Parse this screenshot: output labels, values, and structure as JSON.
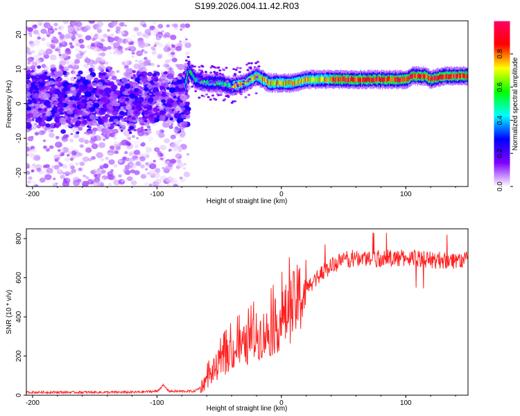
{
  "title": "S199.2026.004.11.42.R03",
  "chart_data": [
    {
      "type": "heatmap",
      "xlabel": "Height of straight line (km)",
      "ylabel": "Frequency (Hz)",
      "xlim": [
        -205,
        150
      ],
      "ylim": [
        -24,
        24
      ],
      "xticks": [
        -200,
        -100,
        0,
        100
      ],
      "yticks": [
        20,
        10,
        0,
        -10,
        -20
      ],
      "colorbar": {
        "label": "Normalized spectral amplitude",
        "range": [
          0,
          1
        ],
        "ticks": [
          "0.0",
          "0.2",
          "0.4",
          "0.6",
          "0.8"
        ],
        "colors": [
          "#ffffff",
          "#8000ff",
          "#0000ff",
          "#00ffff",
          "#00ff00",
          "#ffff00",
          "#ff0000",
          "#ff0066"
        ]
      },
      "ridge_frequency": {
        "x": [
          -200,
          -150,
          -100,
          -80,
          -75,
          -70,
          -60,
          -50,
          -40,
          -30,
          -25,
          -20,
          -15,
          -10,
          0,
          10,
          20,
          30,
          40,
          50,
          60,
          70,
          80,
          90,
          100,
          105,
          110,
          115,
          120,
          130,
          140,
          150
        ],
        "y": [
          1,
          1,
          1,
          2,
          10,
          7,
          6,
          6,
          5,
          6,
          7,
          8,
          7,
          6,
          6,
          6,
          7,
          7,
          7,
          7,
          7,
          7,
          7,
          7,
          7,
          8,
          8,
          8,
          7,
          8,
          8,
          8
        ]
      }
    },
    {
      "type": "line",
      "xlabel": "Height of straight line (km)",
      "ylabel": "SNR (10 * v/v)",
      "xlim": [
        -205,
        150
      ],
      "ylim": [
        0,
        850
      ],
      "xticks": [
        -200,
        -100,
        0,
        100
      ],
      "yticks": [
        0,
        200,
        400,
        600,
        800
      ],
      "color": "#ff0000",
      "series": [
        {
          "name": "SNR",
          "x": [
            -205,
            -180,
            -150,
            -120,
            -100,
            -95,
            -90,
            -80,
            -70,
            -65,
            -60,
            -55,
            -50,
            -45,
            -40,
            -35,
            -30,
            -25,
            -20,
            -15,
            -10,
            -5,
            0,
            5,
            10,
            15,
            20,
            25,
            30,
            35,
            40,
            50,
            60,
            70,
            80,
            90,
            100,
            110,
            120,
            130,
            140,
            150
          ],
          "y": [
            15,
            15,
            15,
            15,
            20,
            50,
            20,
            20,
            20,
            40,
            80,
            120,
            160,
            190,
            220,
            240,
            250,
            270,
            300,
            310,
            320,
            350,
            380,
            420,
            460,
            500,
            540,
            580,
            610,
            640,
            660,
            690,
            700,
            700,
            700,
            700,
            700,
            700,
            690,
            690,
            690,
            690
          ]
        }
      ]
    }
  ]
}
